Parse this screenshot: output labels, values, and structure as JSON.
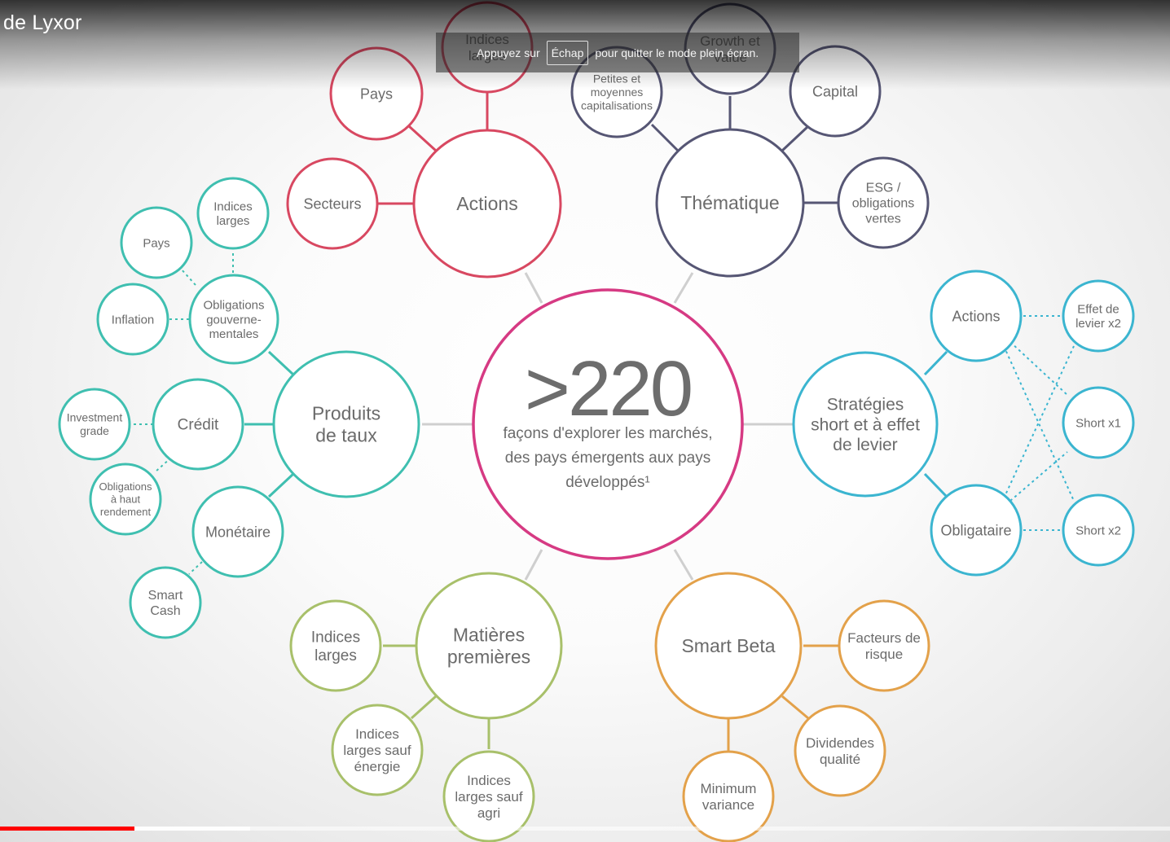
{
  "player": {
    "title": "de Lyxor",
    "toast_before": "Appuyez sur",
    "toast_key": "Échap",
    "toast_after": "pour quitter le mode plein écran.",
    "progress_played_pct": 11.5,
    "progress_loaded_pct": 21.4
  },
  "colors": {
    "center": "#d63a83",
    "actions": "#d84861",
    "thematique": "#565674",
    "taux": "#3fbfb0",
    "strategies": "#3bb5d0",
    "matieres": "#a8c06a",
    "smartbeta": "#e3a14a",
    "connector": "#cfcfcf",
    "text": "#6b6b6b"
  },
  "diagram": {
    "center": {
      "big_number": ">220",
      "caption": [
        "façons d'explorer les marchés,",
        "des pays émergents aux pays",
        "développés¹"
      ]
    },
    "actions": {
      "label": "Actions",
      "children": [
        [
          "Indices",
          "larges"
        ],
        [
          "Pays"
        ],
        [
          "Secteurs"
        ]
      ]
    },
    "thematique": {
      "label": "Thématique",
      "children": [
        [
          "Growth et",
          "Value"
        ],
        [
          "Petites et",
          "moyennes",
          "capitalisations"
        ],
        [
          "Capital"
        ],
        [
          "ESG /",
          "obligations",
          "vertes"
        ]
      ]
    },
    "taux": {
      "label": [
        "Produits",
        "de taux"
      ],
      "obligations": [
        "Obligations",
        "gouverne-",
        "mentales"
      ],
      "obligations_children": [
        [
          "Indices",
          "larges"
        ],
        [
          "Pays"
        ],
        [
          "Inflation"
        ]
      ],
      "credit": [
        "Crédit"
      ],
      "credit_children": [
        [
          "Investment",
          "grade"
        ],
        [
          "Obligations",
          "à haut",
          "rendement"
        ]
      ],
      "monetaire": [
        "Monétaire"
      ],
      "monetaire_children": [
        [
          "Smart",
          "Cash"
        ]
      ]
    },
    "strategies": {
      "label": [
        "Stratégies",
        "short et à effet",
        "de levier"
      ],
      "actions": [
        "Actions"
      ],
      "obligataire": [
        "Obligataire"
      ],
      "leverage": [
        [
          "Effet de",
          "levier x2"
        ],
        [
          "Short x1"
        ],
        [
          "Short x2"
        ]
      ]
    },
    "matieres": {
      "label": [
        "Matières",
        "premières"
      ],
      "children": [
        [
          "Indices",
          "larges"
        ],
        [
          "Indices",
          "larges sauf",
          "énergie"
        ],
        [
          "Indices",
          "larges sauf",
          "agri"
        ]
      ]
    },
    "smartbeta": {
      "label": [
        "Smart Beta"
      ],
      "children": [
        [
          "Facteurs de",
          "risque"
        ],
        [
          "Dividendes",
          "qualité"
        ],
        [
          "Minimum",
          "variance"
        ]
      ]
    }
  }
}
